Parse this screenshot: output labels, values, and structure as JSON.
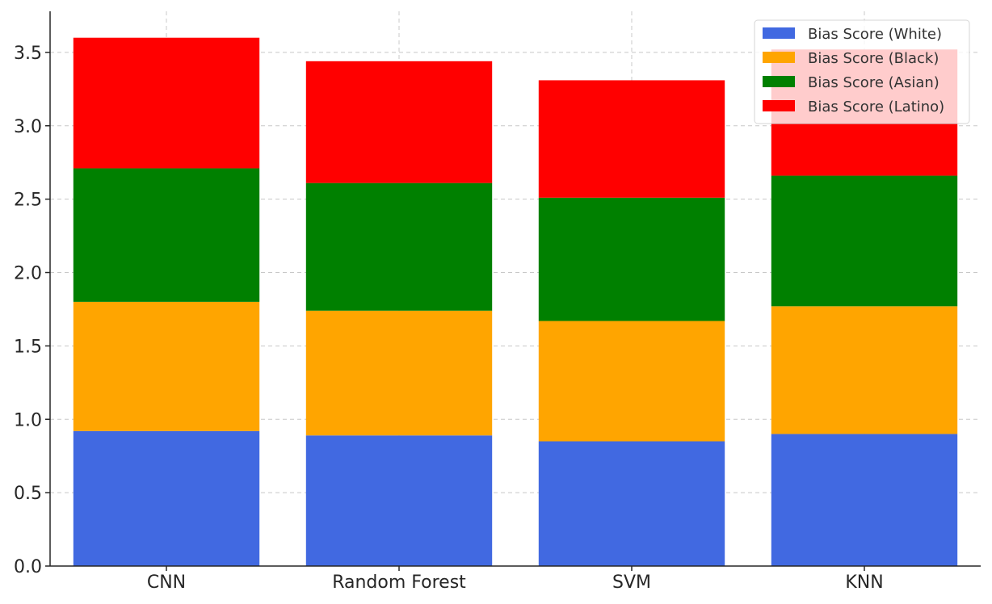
{
  "chart_data": {
    "type": "bar",
    "stacked": true,
    "categories": [
      "CNN",
      "Random Forest",
      "SVM",
      "KNN"
    ],
    "series": [
      {
        "name": "Bias Score (White)",
        "color": "#4169e1",
        "values": [
          0.92,
          0.89,
          0.85,
          0.9
        ]
      },
      {
        "name": "Bias Score (Black)",
        "color": "#ffa500",
        "values": [
          0.88,
          0.85,
          0.82,
          0.87
        ]
      },
      {
        "name": "Bias Score (Asian)",
        "color": "#008000",
        "values": [
          0.91,
          0.87,
          0.84,
          0.89
        ]
      },
      {
        "name": "Bias Score (Latino)",
        "color": "#ff0000",
        "values": [
          0.89,
          0.83,
          0.8,
          0.86
        ]
      }
    ],
    "yticks": [
      "0.0",
      "0.5",
      "1.0",
      "1.5",
      "2.0",
      "2.5",
      "3.0",
      "3.5"
    ],
    "ylim": [
      0,
      3.78
    ],
    "title": "",
    "xlabel": "",
    "ylabel": "",
    "grid": true,
    "legend_position": "top-right"
  }
}
